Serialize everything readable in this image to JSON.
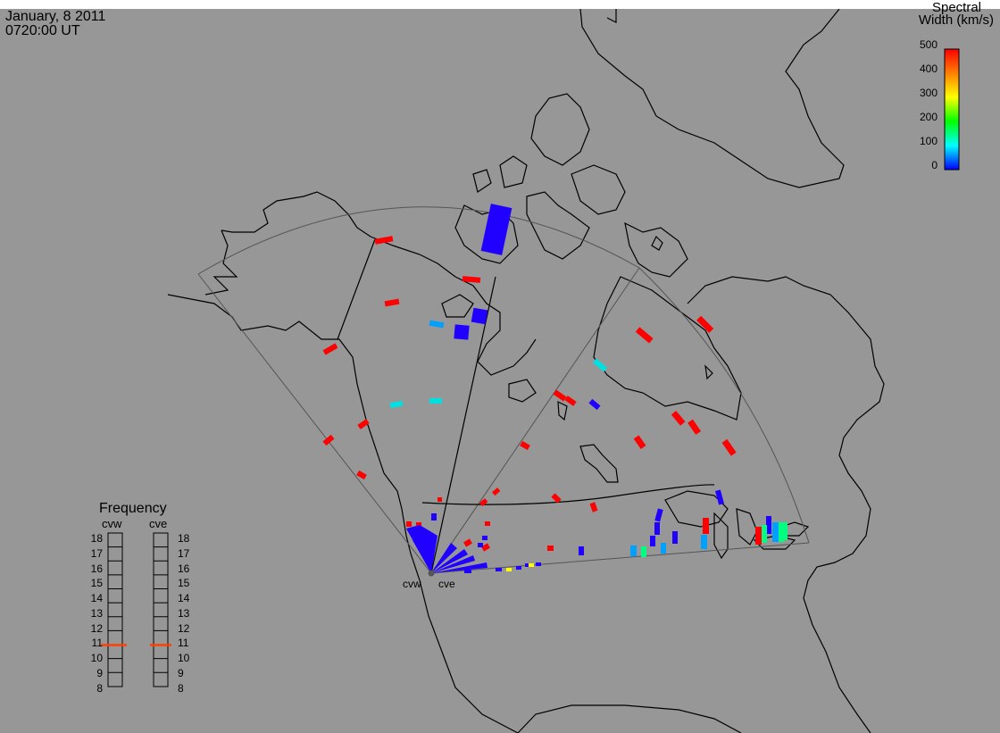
{
  "header": {
    "date": "January, 8 2011",
    "time": "0720:00 UT"
  },
  "colorbar": {
    "title_line1": "Spectral",
    "title_line2": "Width (km/s)",
    "ticks": [
      "500",
      "400",
      "300",
      "200",
      "100",
      "0"
    ],
    "colors": [
      "#ff0000",
      "#ff8000",
      "#ffff00",
      "#00ff00",
      "#00ffff",
      "#0000ff"
    ]
  },
  "frequency_panel": {
    "title": "Frequency",
    "radars": [
      "cvw",
      "cve"
    ],
    "ticks": [
      "18",
      "17",
      "16",
      "15",
      "14",
      "13",
      "12",
      "11",
      "10",
      "9",
      "8"
    ],
    "selected_frequency": {
      "cvw": 10.7,
      "cve": 10.7
    },
    "marker_color": "#ff4000"
  },
  "map": {
    "radar_labels": [
      "cvw",
      "cve"
    ],
    "echo_colors": {
      "red": "#ff0000",
      "blue": "#2000ff",
      "cyan": "#00e0e0",
      "lightblue": "#00a0ff",
      "green": "#00ff80",
      "yellow": "#ffff00"
    }
  }
}
